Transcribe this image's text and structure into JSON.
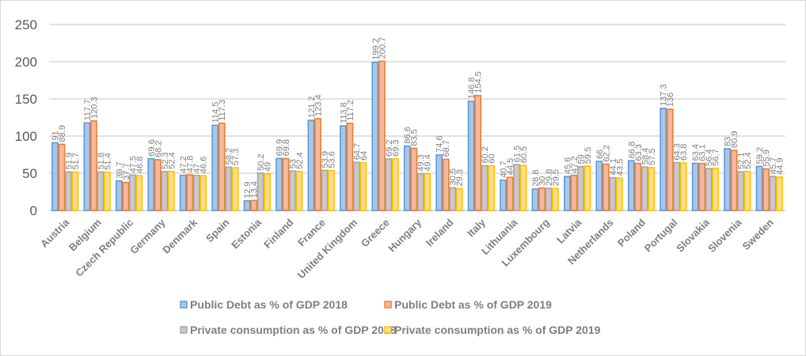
{
  "chart_data": {
    "type": "bar",
    "title": "",
    "xlabel": "",
    "ylabel": "",
    "ylim": [
      0,
      250
    ],
    "yticks": [
      0,
      50,
      100,
      150,
      200,
      250
    ],
    "grid": true,
    "legend_position": "bottom",
    "categories": [
      "Austria",
      "Belgium",
      "Czech Republic",
      "Germany",
      "Denmark",
      "Spain",
      "Estonia",
      "Finland",
      "France",
      "United Kingdom",
      "Greece",
      "Hungary",
      "Ireland",
      "Italy",
      "Lithuania",
      "Luxembourg",
      "Latvia",
      "Netherlands",
      "Poland",
      "Portugal",
      "Slovakia",
      "Slovenia",
      "Sweden"
    ],
    "series": [
      {
        "name": "Public Debt as % of GDP 2018",
        "fill": "#a9c6ea",
        "stroke": "#5b9bd5",
        "values": [
          91,
          117.7,
          39.7,
          69.6,
          47.2,
          114.5,
          12.9,
          69.9,
          121.2,
          113.8,
          199.2,
          86.6,
          74.6,
          146.8,
          40.7,
          28.8,
          45.6,
          66,
          66.8,
          137.3,
          63.4,
          83,
          59.2
        ]
      },
      {
        "name": "Public Debt as % of GDP 2019",
        "fill": "#f8b89a",
        "stroke": "#ed7d31",
        "values": [
          88.9,
          120.3,
          37.7,
          68.2,
          47.8,
          117.3,
          13.4,
          69.8,
          123.4,
          117.2,
          200.7,
          83.5,
          68.7,
          154.5,
          44.5,
          30,
          47.2,
          62.2,
          63.3,
          136,
          63.1,
          80.9,
          55.9
        ]
      },
      {
        "name": "Private consumption as % of GDP 2018",
        "fill": "#c9c9c9",
        "stroke": "#a5a5a5",
        "values": [
          51.9,
          51.8,
          47.5,
          52.3,
          47,
          58.2,
          50.2,
          53,
          53.9,
          64.7,
          69.2,
          49.3,
          30.5,
          60.2,
          61.5,
          29.8,
          59,
          44.1,
          58.4,
          64.3,
          56.4,
          52.1,
          45.7
        ]
      },
      {
        "name": "Private consumption as % of GDP 2019",
        "fill": "#ffdd88",
        "stroke": "#ffc000",
        "values": [
          51.7,
          51.4,
          46.8,
          52.4,
          46.6,
          57.3,
          49,
          52.4,
          53.6,
          64,
          69.3,
          49.4,
          29.3,
          60,
          60.5,
          29.5,
          59.5,
          43.5,
          57.5,
          63.8,
          56.7,
          52.4,
          44.9
        ]
      }
    ]
  }
}
